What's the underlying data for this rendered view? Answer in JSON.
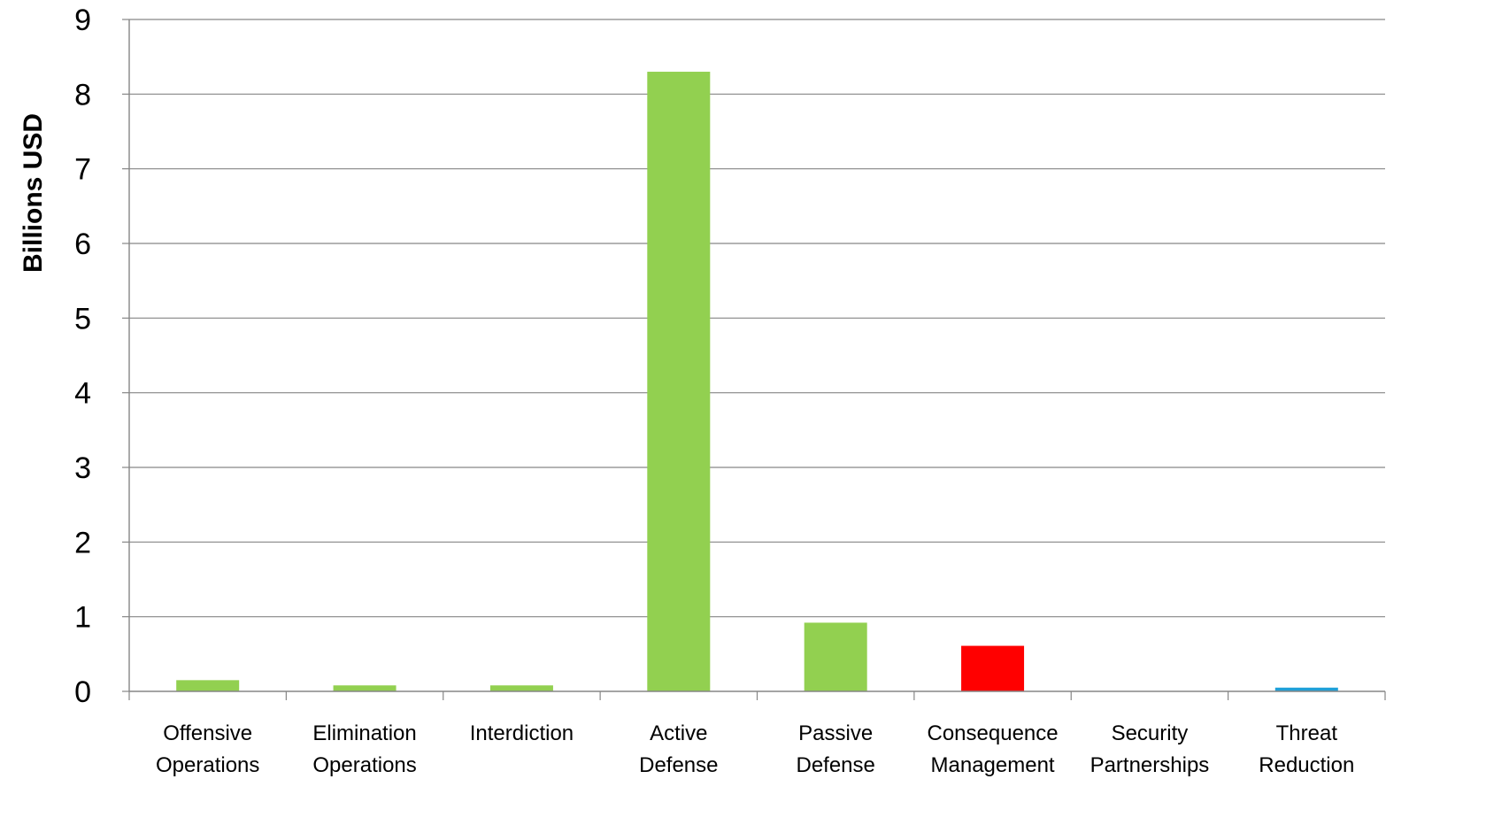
{
  "chart_data": {
    "type": "bar",
    "title": "",
    "xlabel": "",
    "ylabel": "Billions USD",
    "ylim": [
      0,
      9
    ],
    "yticks": [
      0,
      1,
      2,
      3,
      4,
      5,
      6,
      7,
      8,
      9
    ],
    "grid": true,
    "legend": "none",
    "categories": [
      [
        "Offensive",
        "Operations"
      ],
      [
        "Elimination",
        "Operations"
      ],
      [
        "Interdiction"
      ],
      [
        "Active",
        "Defense"
      ],
      [
        "Passive",
        "Defense"
      ],
      [
        "Consequence",
        "Management"
      ],
      [
        "Security",
        "Partnerships"
      ],
      [
        "Threat",
        "Reduction"
      ]
    ],
    "values": [
      0.15,
      0.08,
      0.08,
      8.3,
      0.92,
      0.61,
      0,
      0.05
    ],
    "colors": [
      "#92d050",
      "#92d050",
      "#92d050",
      "#92d050",
      "#92d050",
      "#ff0000",
      "#92d050",
      "#1fa0d8"
    ],
    "gridline_color": "#868686",
    "axis_color": "#868686"
  }
}
